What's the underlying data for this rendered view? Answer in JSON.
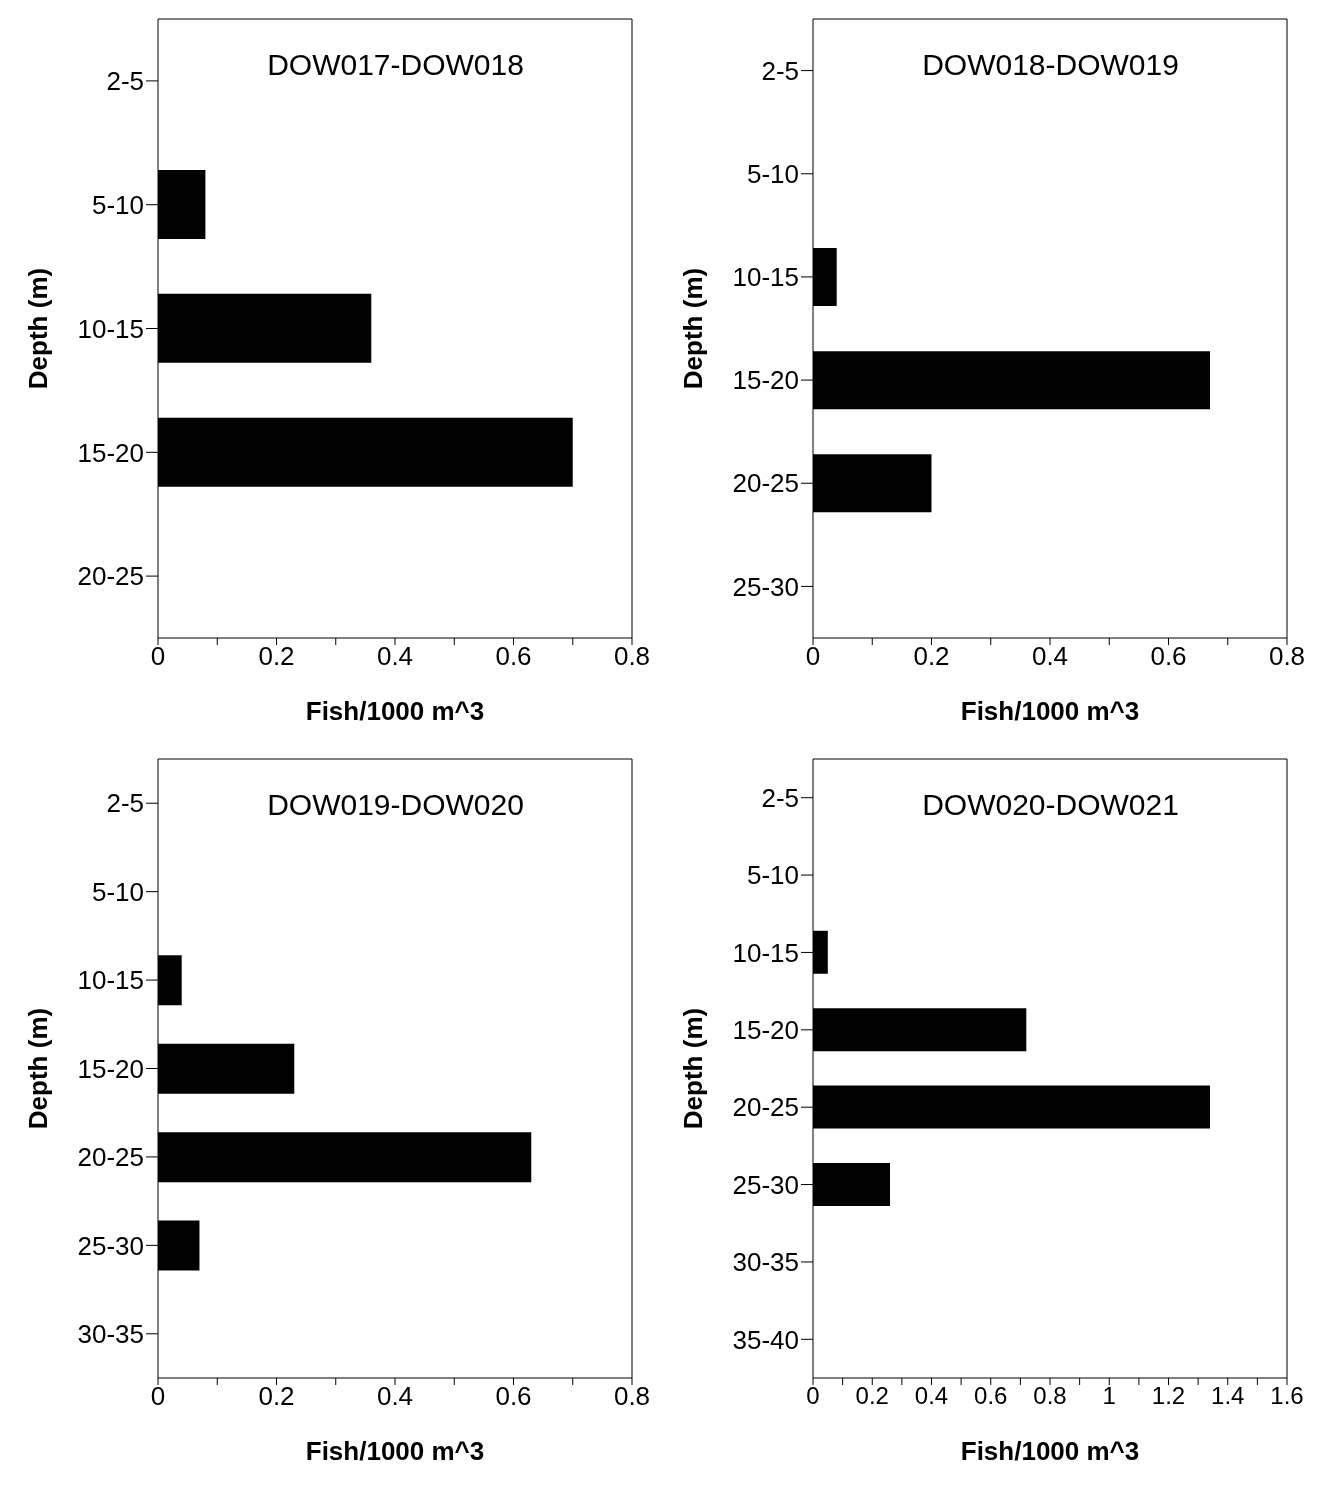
{
  "chart_data": [
    {
      "type": "bar",
      "orientation": "horizontal",
      "title": "DOW017-DOW018",
      "xlabel": "Fish/1000 m^3",
      "ylabel": "Depth (m)",
      "categories": [
        "2-5",
        "5-10",
        "10-15",
        "15-20",
        "20-25"
      ],
      "values": [
        0,
        0.08,
        0.36,
        0.7,
        0
      ],
      "color": "#000000",
      "xlim": [
        0,
        0.8
      ],
      "xticks": [
        0,
        {
          "value": 0.1,
          "label": null
        },
        0.2,
        {
          "value": 0.3,
          "label": null
        },
        0.4,
        {
          "value": 0.5,
          "label": null
        },
        0.6,
        {
          "value": 0.7,
          "label": null
        },
        0.8
      ],
      "grid": false,
      "legend": false
    },
    {
      "type": "bar",
      "orientation": "horizontal",
      "title": "DOW018-DOW019",
      "xlabel": "Fish/1000 m^3",
      "ylabel": "Depth (m)",
      "categories": [
        "2-5",
        "5-10",
        "10-15",
        "15-20",
        "20-25",
        "25-30"
      ],
      "values": [
        0,
        0,
        0.04,
        0.67,
        0.2,
        0
      ],
      "color": "#000000",
      "xlim": [
        0,
        0.8
      ],
      "xticks": [
        0,
        {
          "value": 0.1,
          "label": null
        },
        0.2,
        {
          "value": 0.3,
          "label": null
        },
        0.4,
        {
          "value": 0.5,
          "label": null
        },
        0.6,
        {
          "value": 0.7,
          "label": null
        },
        0.8
      ],
      "grid": false,
      "legend": false
    },
    {
      "type": "bar",
      "orientation": "horizontal",
      "title": "DOW019-DOW020",
      "xlabel": "Fish/1000 m^3",
      "ylabel": "Depth (m)",
      "categories": [
        "2-5",
        "5-10",
        "10-15",
        "15-20",
        "20-25",
        "25-30",
        "30-35"
      ],
      "values": [
        0,
        0,
        0.04,
        0.23,
        0.63,
        0.07,
        0
      ],
      "color": "#000000",
      "xlim": [
        0,
        0.8
      ],
      "xticks": [
        0,
        {
          "value": 0.1,
          "label": null
        },
        0.2,
        {
          "value": 0.3,
          "label": null
        },
        0.4,
        {
          "value": 0.5,
          "label": null
        },
        0.6,
        {
          "value": 0.7,
          "label": null
        },
        0.8
      ],
      "grid": false,
      "legend": false
    },
    {
      "type": "bar",
      "orientation": "horizontal",
      "title": "DOW020-DOW021",
      "xlabel": "Fish/1000 m^3",
      "ylabel": "Depth (m)",
      "categories": [
        "2-5",
        "5-10",
        "10-15",
        "15-20",
        "20-25",
        "25-30",
        "30-35",
        "35-40"
      ],
      "values": [
        0,
        0,
        0.05,
        0.72,
        1.34,
        0.26,
        0,
        0
      ],
      "color": "#000000",
      "xlim": [
        0,
        1.6
      ],
      "xticks": [
        0,
        {
          "value": 0.1,
          "label": null
        },
        0.2,
        {
          "value": 0.3,
          "label": null
        },
        0.4,
        {
          "value": 0.5,
          "label": null
        },
        0.6,
        {
          "value": 0.7,
          "label": null
        },
        0.8,
        {
          "value": 0.9,
          "label": null
        },
        1,
        {
          "value": 1.1,
          "label": null
        },
        1.2,
        {
          "value": 1.3,
          "label": null
        },
        1.4,
        {
          "value": 1.5,
          "label": null
        },
        1.6
      ],
      "grid": false,
      "legend": false
    }
  ]
}
